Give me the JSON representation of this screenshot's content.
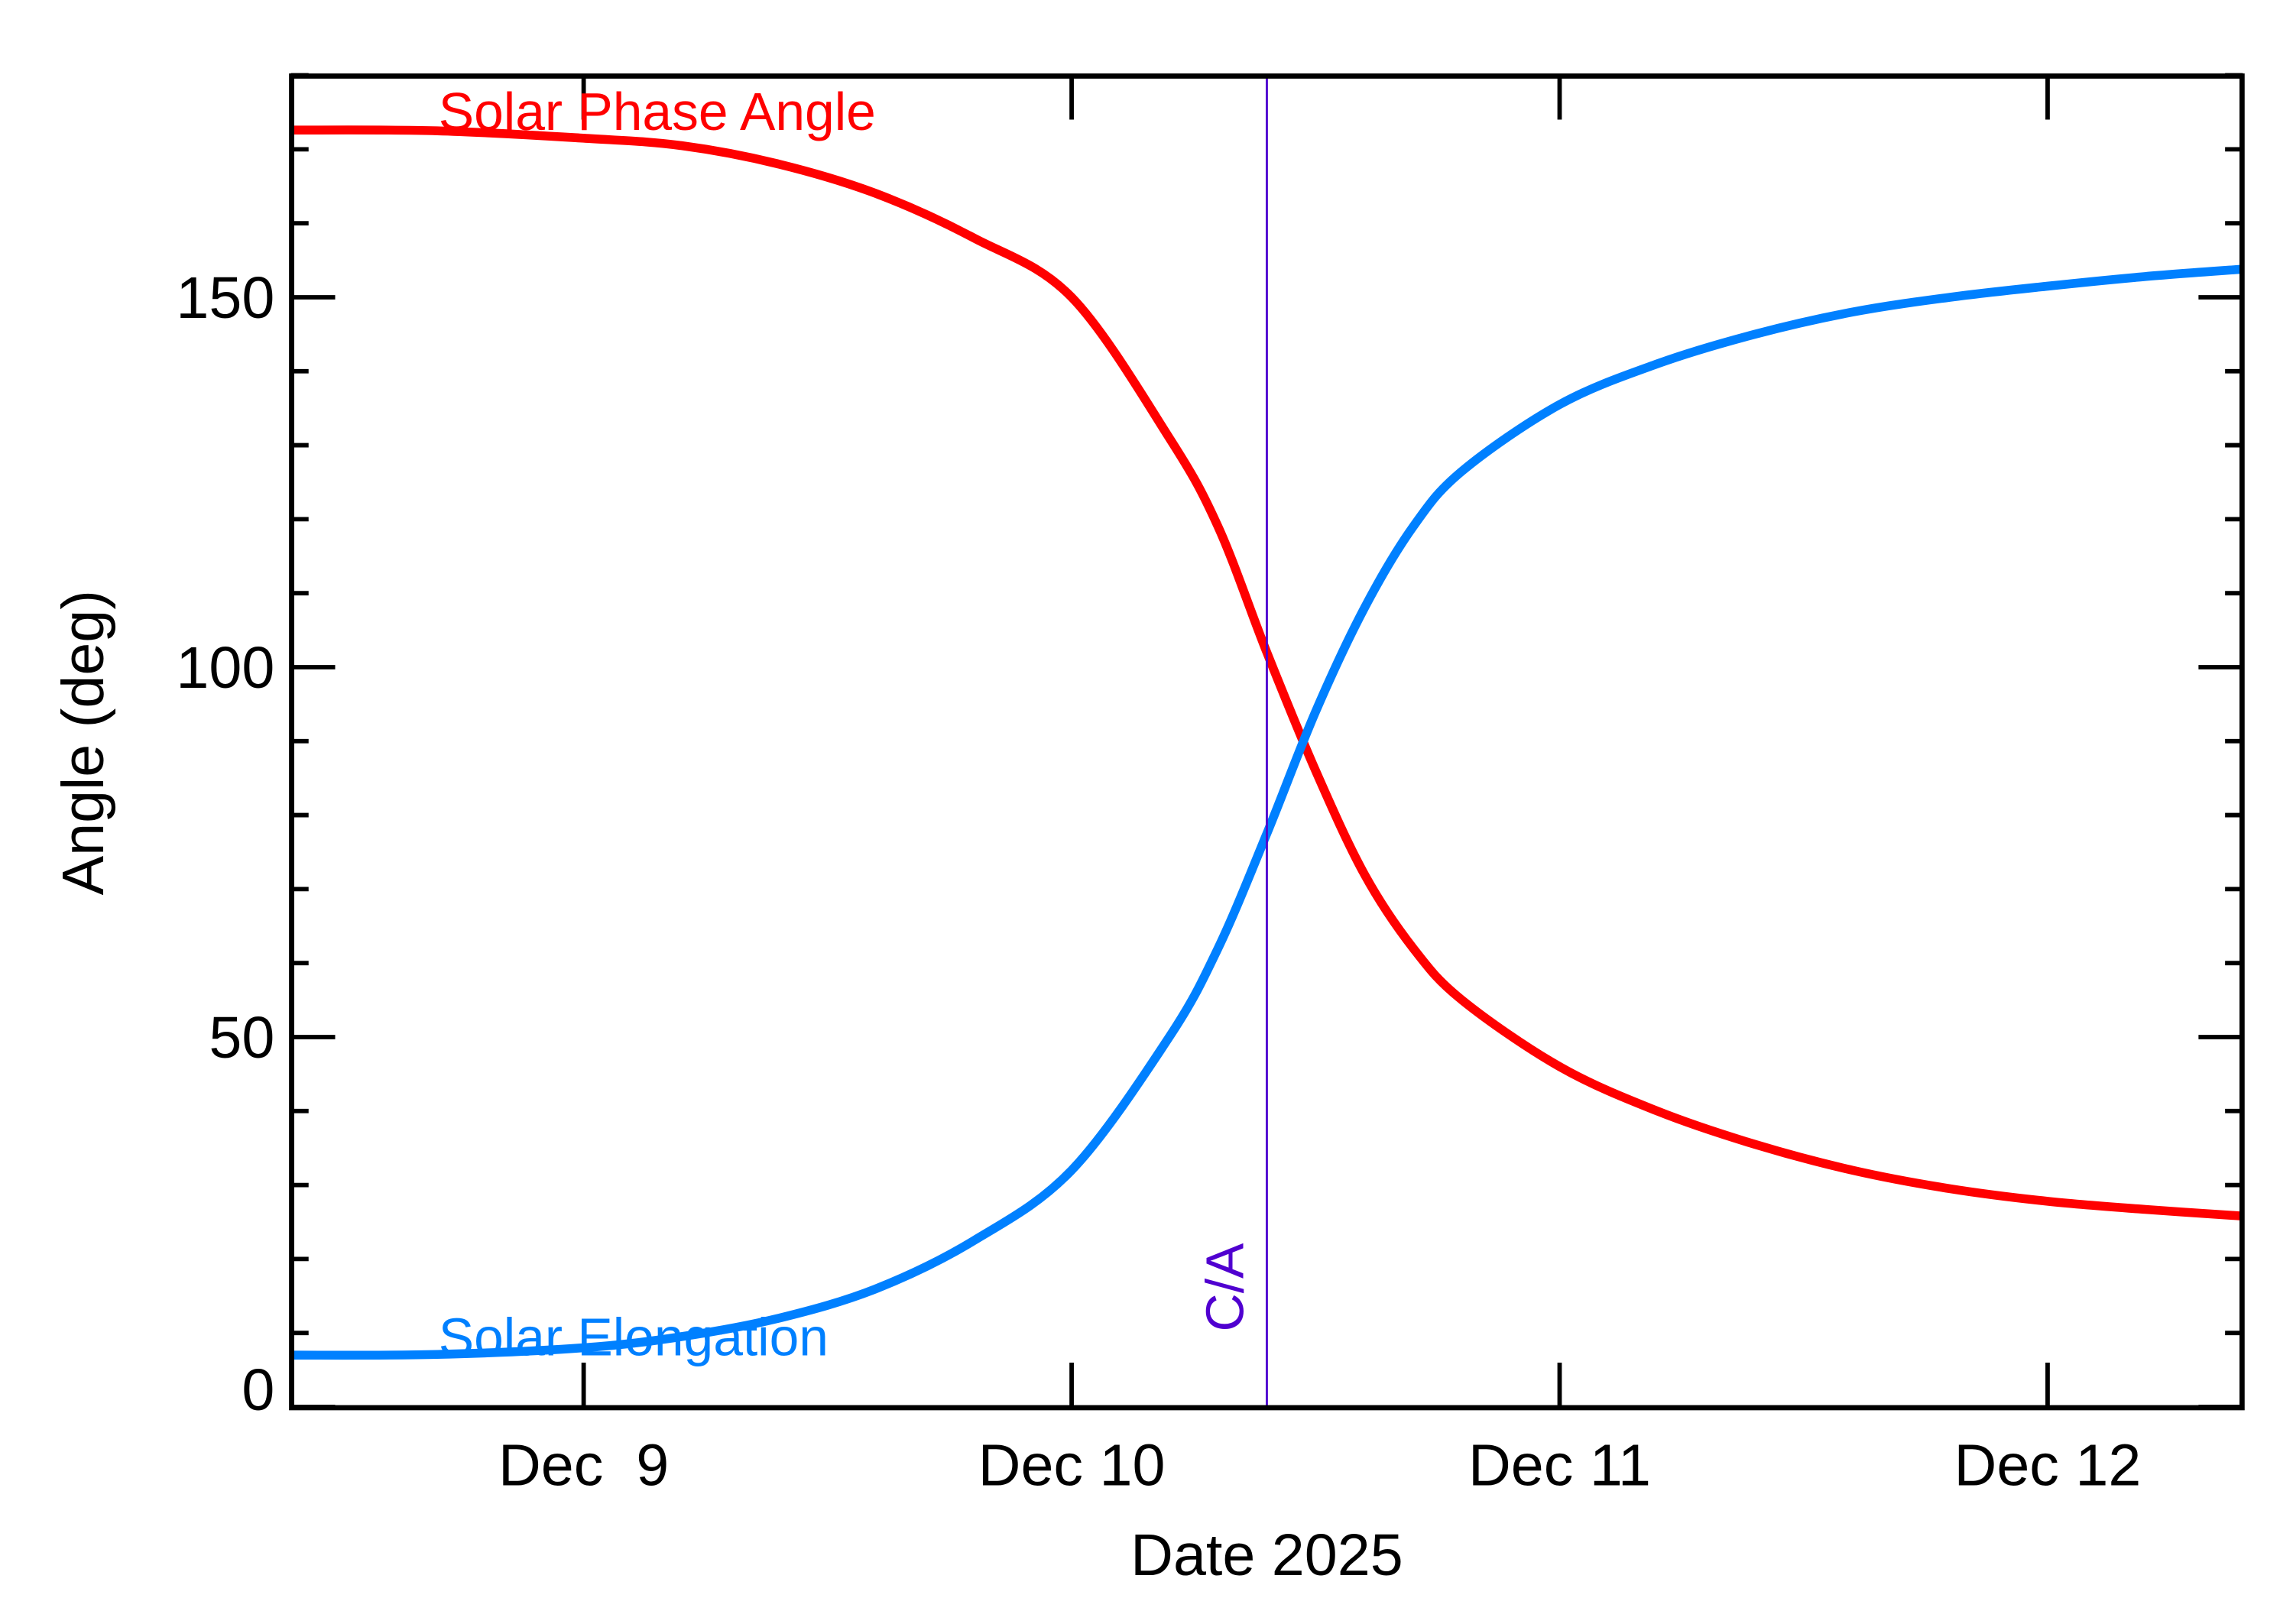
{
  "chart_data": {
    "type": "line",
    "title": "",
    "xlabel": "Date 2025",
    "ylabel": "Angle (deg)",
    "xlim": [
      "2025-12-08 09:36",
      "2025-12-12 09:36"
    ],
    "ylim": [
      0,
      180
    ],
    "x_ticks": [
      {
        "date": "2025-12-09",
        "label": "Dec  9"
      },
      {
        "date": "2025-12-10",
        "label": "Dec 10"
      },
      {
        "date": "2025-12-11",
        "label": "Dec 11"
      },
      {
        "date": "2025-12-12",
        "label": "Dec 12"
      }
    ],
    "y_ticks": [
      {
        "value": 0,
        "label": "0"
      },
      {
        "value": 50,
        "label": "50"
      },
      {
        "value": 100,
        "label": "100"
      },
      {
        "value": 150,
        "label": "150"
      }
    ],
    "y_minor_step": 10,
    "grid": false,
    "x": [
      "2025-12-08 09:36",
      "2025-12-08 16:48",
      "2025-12-09 00:00",
      "2025-12-09 04:48",
      "2025-12-09 09:36",
      "2025-12-09 14:24",
      "2025-12-09 19:12",
      "2025-12-10 00:00",
      "2025-12-10 04:48",
      "2025-12-10 07:12",
      "2025-12-10 09:36",
      "2025-12-10 12:00",
      "2025-12-10 14:24",
      "2025-12-10 16:48",
      "2025-12-10 19:12",
      "2025-12-11 00:00",
      "2025-12-11 04:48",
      "2025-12-11 09:36",
      "2025-12-11 14:24",
      "2025-12-11 19:12",
      "2025-12-12 00:00",
      "2025-12-12 04:48",
      "2025-12-12 09:36"
    ],
    "series": [
      {
        "name": "Solar Phase Angle",
        "color": "#ff0000",
        "values": [
          172.6,
          172.5,
          171.5,
          170.5,
          168,
          164,
          158,
          150,
          131,
          119,
          102,
          86,
          72,
          62,
          55,
          46,
          40,
          35.5,
          32,
          29.5,
          27.8,
          26.7,
          25.8
        ]
      },
      {
        "name": "Solar Elongation",
        "color": "#0080ff",
        "values": [
          7.0,
          7.1,
          8,
          9.5,
          12,
          16,
          22.5,
          32,
          50,
          62,
          77.5,
          94,
          108,
          119,
          126.5,
          135.5,
          141,
          145,
          148,
          150,
          151.5,
          152.8,
          153.8
        ]
      }
    ],
    "annotations": [
      {
        "type": "vline",
        "date": "2025-12-10 09:36",
        "label": "C/A",
        "color": "#5000d0"
      }
    ],
    "legend": "inline-left"
  }
}
